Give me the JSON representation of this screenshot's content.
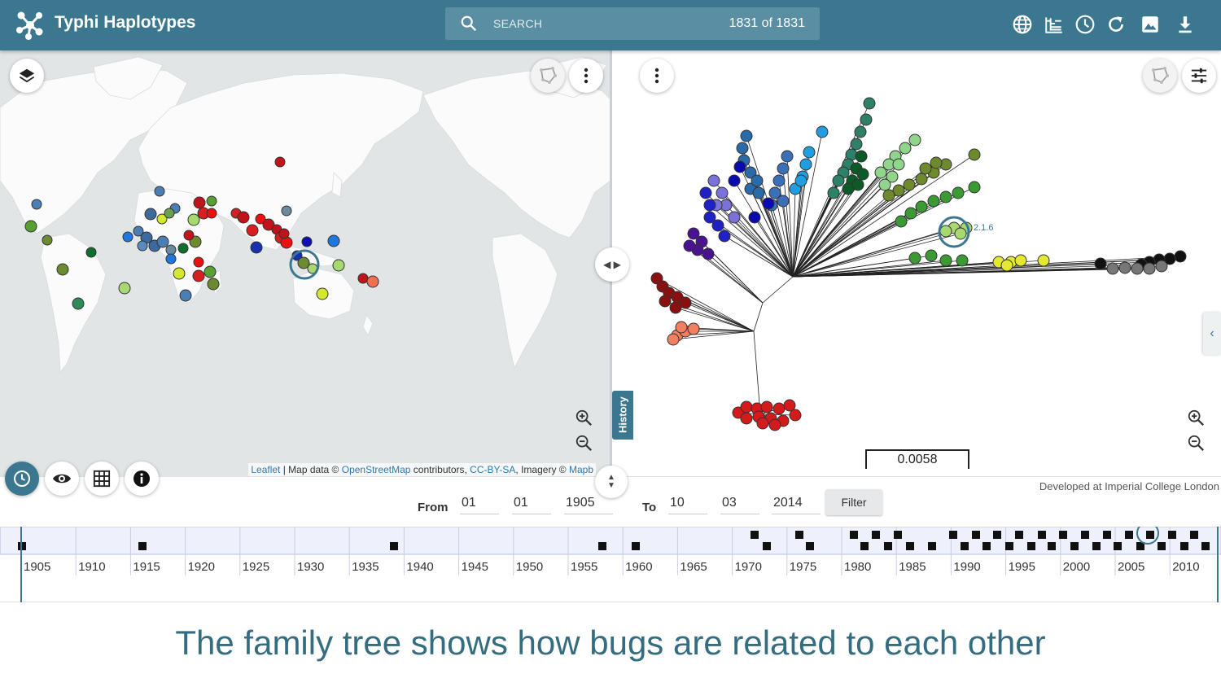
{
  "header": {
    "title": "Typhi Haplotypes",
    "search_placeholder": "SEARCH",
    "count": "1831 of 1831",
    "icons": [
      "globe-icon",
      "tree-view-icon",
      "history-icon",
      "refresh-icon",
      "image-export-icon",
      "download-icon"
    ]
  },
  "map": {
    "attribution": {
      "leaflet": "Leaflet",
      "map_data": "| Map data ©",
      "osm": "OpenStreetMap",
      "contributors": "contributors,",
      "license": "CC-BY-SA",
      "imagery": ", Imagery ©",
      "mapbox": "Mapb"
    }
  },
  "tree": {
    "scale": "0.0058",
    "node_label": "2.1.6",
    "credit": "Developed at Imperial College London",
    "history_tab": "History"
  },
  "filter": {
    "from_label": "From",
    "from_day": "01",
    "from_month": "01",
    "from_year": "1905",
    "to_label": "To",
    "to_day": "10",
    "to_month": "03",
    "to_year": "2014",
    "button": "Filter"
  },
  "timeline": {
    "years": [
      "1905",
      "1910",
      "1915",
      "1920",
      "1925",
      "1930",
      "1935",
      "1940",
      "1945",
      "1950",
      "1955",
      "1960",
      "1965",
      "1970",
      "1975",
      "1980",
      "1985",
      "1990",
      "1995",
      "2000",
      "2005",
      "2010"
    ]
  },
  "caption": "The family tree shows how bugs are related to each other",
  "colors": {
    "header": "#3b7890",
    "search": "#5a8ea2",
    "caption": "#346d80",
    "map_land": "#fbfbfb",
    "map_water": "#e1e5e6"
  }
}
